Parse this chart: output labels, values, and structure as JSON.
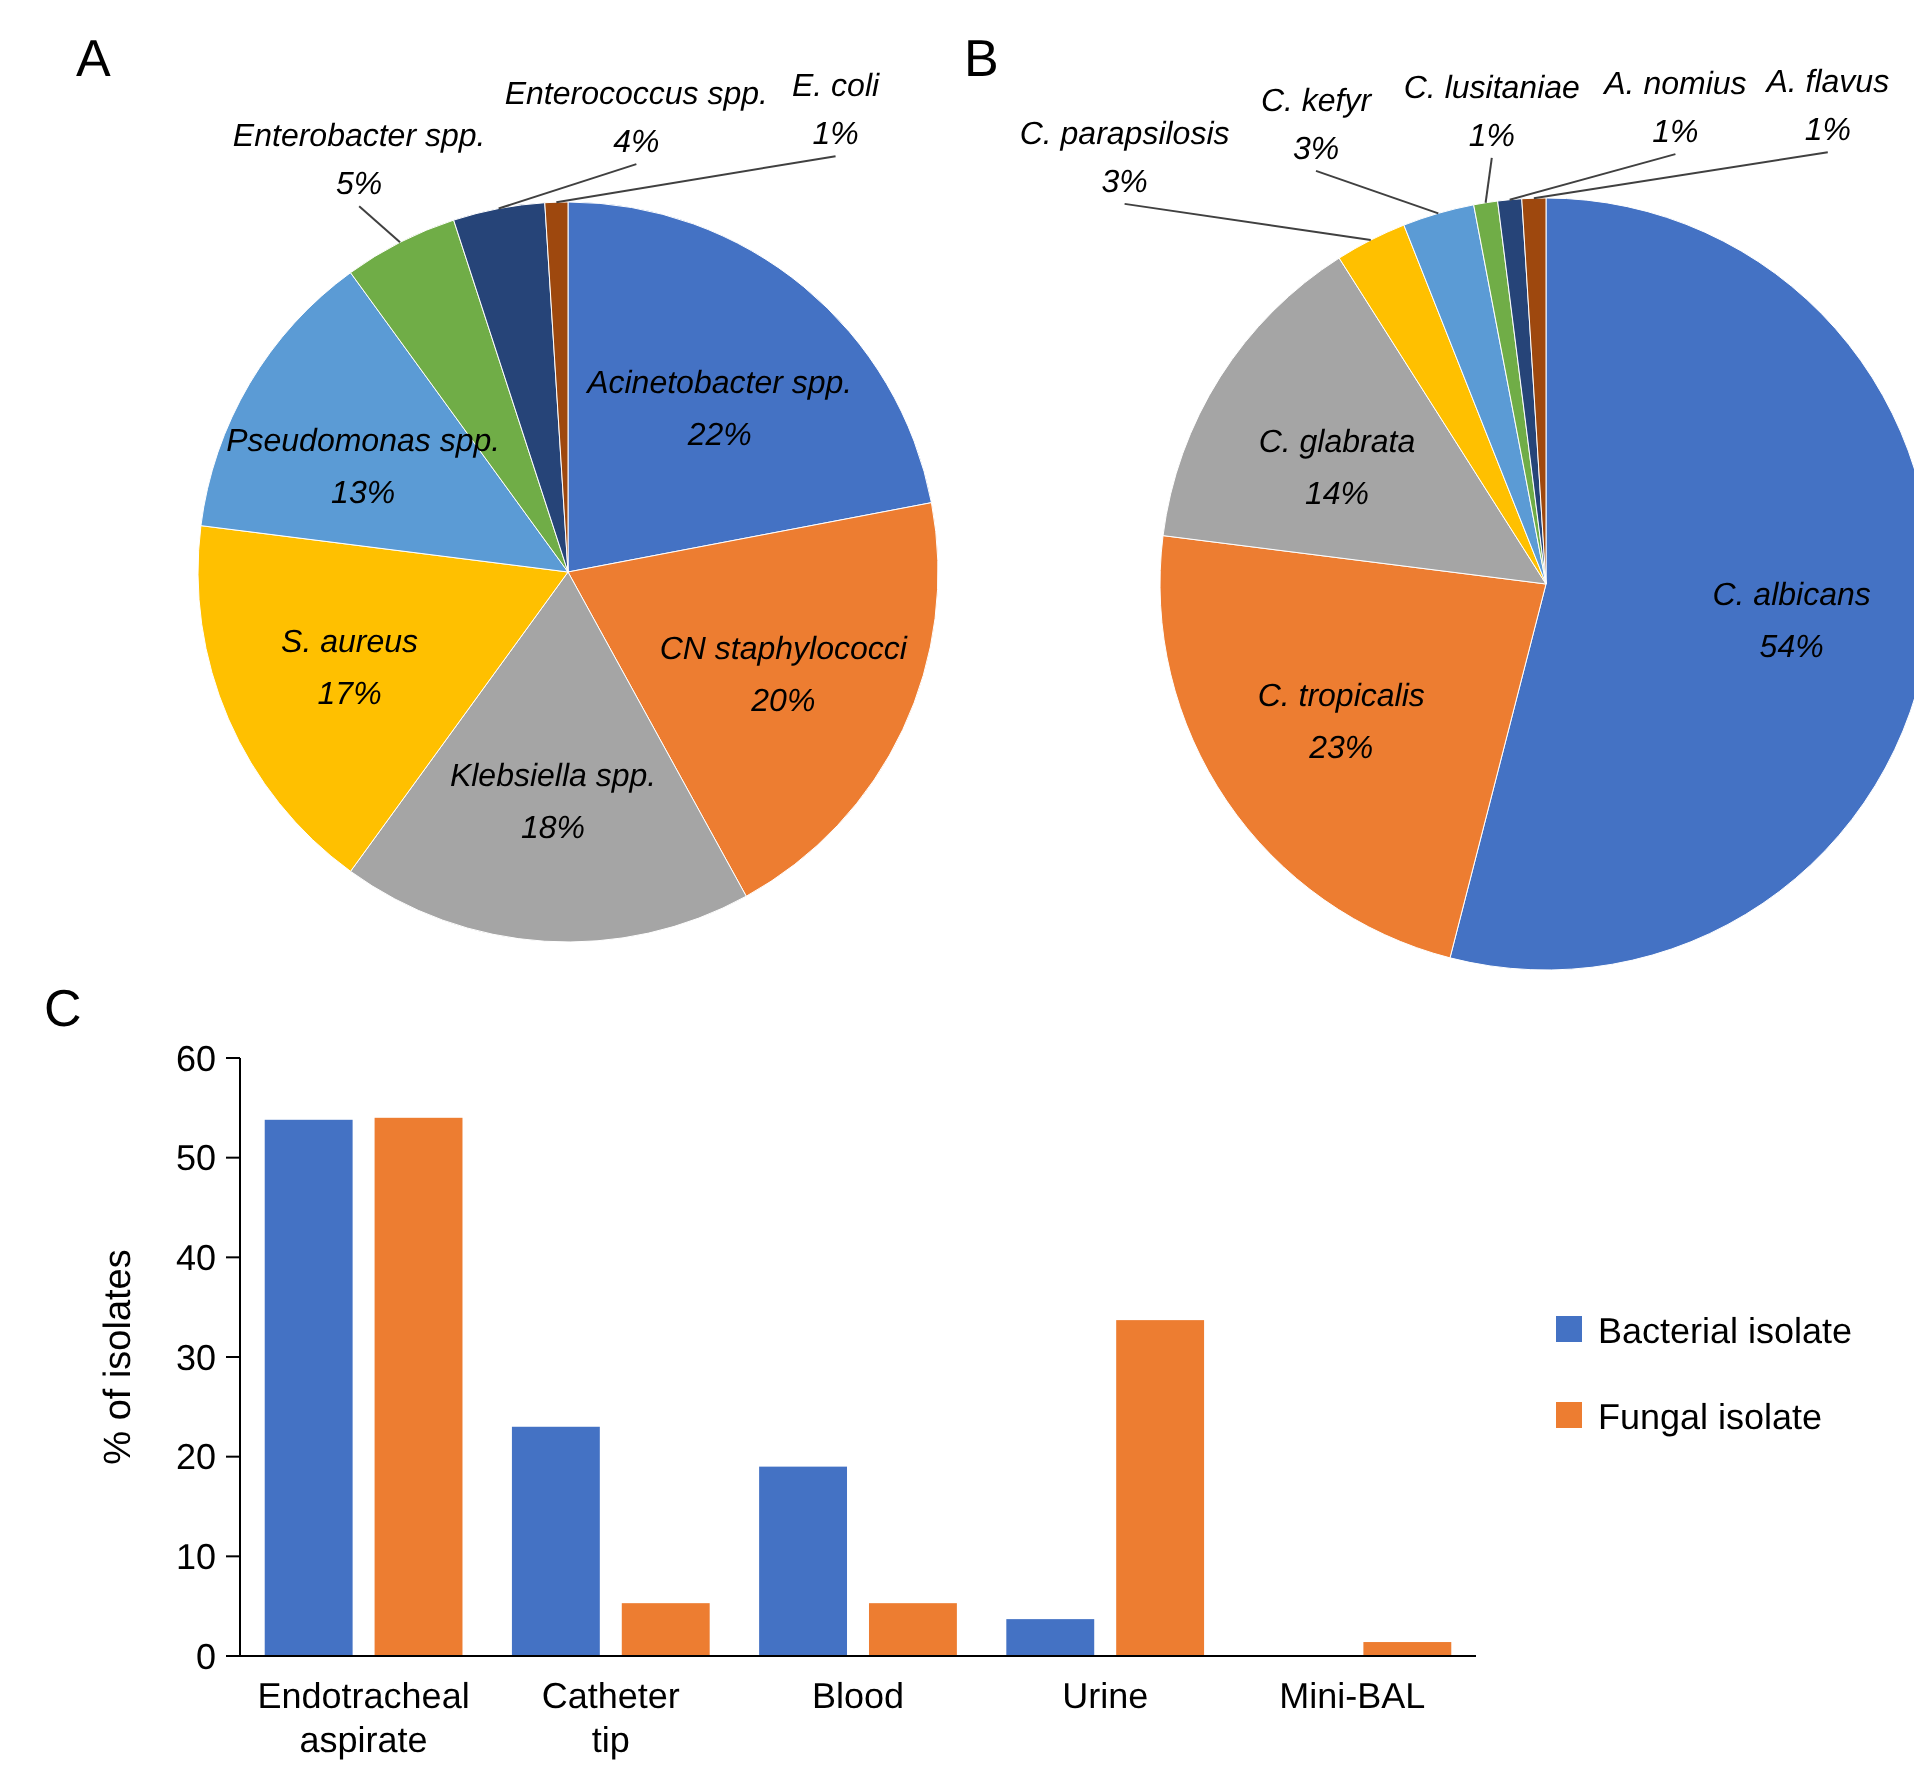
{
  "chart_data": [
    {
      "type": "pie",
      "annotations": [
        "A"
      ],
      "categories": [
        "Acinetobacter spp.",
        "CN staphylococci",
        "Klebsiella spp.",
        "S. aureus",
        "Pseudomonas spp.",
        "Enterobacter spp.",
        "Enterococcus spp.",
        "E. coli"
      ],
      "values": [
        22,
        20,
        18,
        17,
        13,
        5,
        4,
        1
      ],
      "value_labels": [
        "22%",
        "20%",
        "18%",
        "17%",
        "13%",
        "5%",
        "4%",
        "1%"
      ],
      "colors": [
        "#4472c4",
        "#ed7d31",
        "#a5a5a5",
        "#ffc000",
        "#5b9bd5",
        "#70ad47",
        "#264478",
        "#9e480e"
      ]
    },
    {
      "type": "pie",
      "annotations": [
        "B"
      ],
      "categories": [
        "C. albicans",
        "C. tropicalis",
        "C. glabrata",
        "C. parapsilosis",
        "C. kefyr",
        "C. lusitaniae",
        "A. nomius",
        "A. flavus"
      ],
      "values": [
        54,
        23,
        14,
        3,
        3,
        1,
        1,
        1
      ],
      "value_labels": [
        "54%",
        "23%",
        "14%",
        "3%",
        "3%",
        "1%",
        "1%",
        "1%"
      ],
      "colors": [
        "#4472c4",
        "#ed7d31",
        "#a5a5a5",
        "#ffc000",
        "#5b9bd5",
        "#70ad47",
        "#264478",
        "#9e480e"
      ]
    },
    {
      "type": "bar",
      "annotations": [
        "C"
      ],
      "ylabel": "% of isolates",
      "categories": [
        "Endotracheal aspirate",
        "Catheter tip",
        "Blood",
        "Urine",
        "Mini-BAL"
      ],
      "series": [
        {
          "name": "Bacterial isolate",
          "color": "#4472c4",
          "values": [
            53.8,
            23.0,
            19.0,
            3.7,
            0
          ]
        },
        {
          "name": "Fungal isolate",
          "color": "#ed7d31",
          "values": [
            54.0,
            5.3,
            5.3,
            33.7,
            1.4
          ]
        }
      ],
      "ylim": [
        0,
        60
      ],
      "yticks": [
        0,
        10,
        20,
        30,
        40,
        50,
        60
      ],
      "grid": false,
      "legend": "right"
    }
  ]
}
